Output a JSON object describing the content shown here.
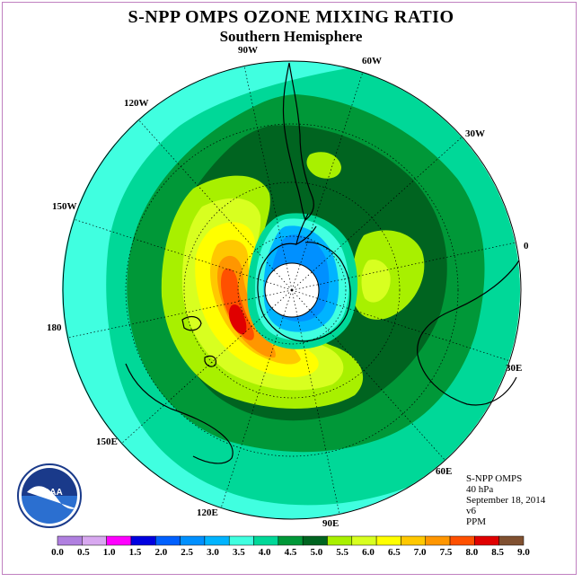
{
  "title": "S-NPP OMPS OZONE MIXING RATIO",
  "subtitle": "Southern Hemisphere",
  "longitude_labels": {
    "lon_90w": "90W",
    "lon_60w": "60W",
    "lon_30w": "30W",
    "lon_0": "0",
    "lon_30e": "30E",
    "lon_60e": "60E",
    "lon_90e": "90E",
    "lon_120e": "120E",
    "lon_150e": "150E",
    "lon_180": "180",
    "lon_150w": "150W",
    "lon_120w": "120W"
  },
  "info": {
    "instrument": "S-NPP OMPS",
    "pressure": "40 hPa",
    "date": "September 18, 2014",
    "version": "v6",
    "units": "PPM"
  },
  "logo_text": "NOAA",
  "legend": {
    "ticks": [
      "0.0",
      "0.5",
      "1.0",
      "1.5",
      "2.0",
      "2.5",
      "3.0",
      "3.5",
      "4.0",
      "4.5",
      "5.0",
      "5.5",
      "6.0",
      "6.5",
      "7.0",
      "7.5",
      "8.0",
      "8.5",
      "9.0"
    ],
    "colors": [
      "#b080e0",
      "#d8a8f0",
      "#ff00ff",
      "#0000e0",
      "#0060ff",
      "#0090ff",
      "#00b4ff",
      "#40ffe0",
      "#00d898",
      "#009838",
      "#006420",
      "#a8f000",
      "#d8ff20",
      "#ffff00",
      "#ffc800",
      "#ff9600",
      "#ff5000",
      "#e00000",
      "#805030"
    ]
  }
}
